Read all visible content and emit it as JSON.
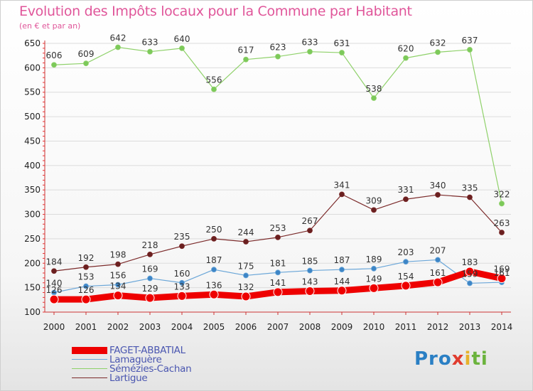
{
  "chart_data": {
    "type": "line",
    "title": "Evolution des Impôts locaux pour la Commune par Habitant",
    "subtitle": "(en € et par an)",
    "x": [
      "2000",
      "2001",
      "2002",
      "2003",
      "2004",
      "2005",
      "2006",
      "2007",
      "2008",
      "2009",
      "2010",
      "2011",
      "2012",
      "2013",
      "2014"
    ],
    "ylim": [
      100,
      650
    ],
    "yticks": [
      100,
      150,
      200,
      250,
      300,
      350,
      400,
      450,
      500,
      550,
      600,
      650
    ],
    "grid": true,
    "legend_position": "bottom-left",
    "series": [
      {
        "name": "FAGET-ABBATIAL",
        "color": "#ee0000",
        "values": [
          126,
          126,
          134,
          129,
          133,
          136,
          132,
          141,
          143,
          144,
          149,
          154,
          161,
          183,
          169
        ],
        "labels": [
          "126",
          "126",
          "134",
          "129",
          "133",
          "136",
          "132",
          "141",
          "143",
          "144",
          "149",
          "154",
          "161",
          "183",
          "169"
        ]
      },
      {
        "name": "Lamaguère",
        "color": "#5b9bd5",
        "values": [
          140,
          153,
          156,
          169,
          160,
          187,
          175,
          181,
          185,
          187,
          189,
          203,
          207,
          159,
          161
        ],
        "labels": [
          "140",
          "153",
          "156",
          "169",
          "160",
          "187",
          "175",
          "181",
          "185",
          "187",
          "189",
          "203",
          "207",
          "159",
          "161"
        ]
      },
      {
        "name": "Sémézies-Cachan",
        "color": "#8fd16a",
        "values": [
          606,
          609,
          642,
          633,
          640,
          556,
          617,
          623,
          633,
          631,
          538,
          620,
          632,
          637,
          322
        ],
        "labels": [
          "606",
          "609",
          "642",
          "633",
          "640",
          "556",
          "617",
          "623",
          "633",
          "631",
          "538",
          "620",
          "632",
          "637",
          "322"
        ]
      },
      {
        "name": "Lartigue",
        "color": "#7b2a2a",
        "values": [
          184,
          192,
          198,
          218,
          235,
          250,
          244,
          253,
          267,
          341,
          309,
          331,
          340,
          335,
          263
        ],
        "labels": [
          "184",
          "192",
          "198",
          "218",
          "235",
          "250",
          "244",
          "253",
          "267",
          "341",
          "309",
          "331",
          "340",
          "335",
          "263"
        ]
      }
    ]
  },
  "logo": {
    "p1": "Pro",
    "p2": "x",
    "p3": "i",
    "p4": "ti"
  }
}
